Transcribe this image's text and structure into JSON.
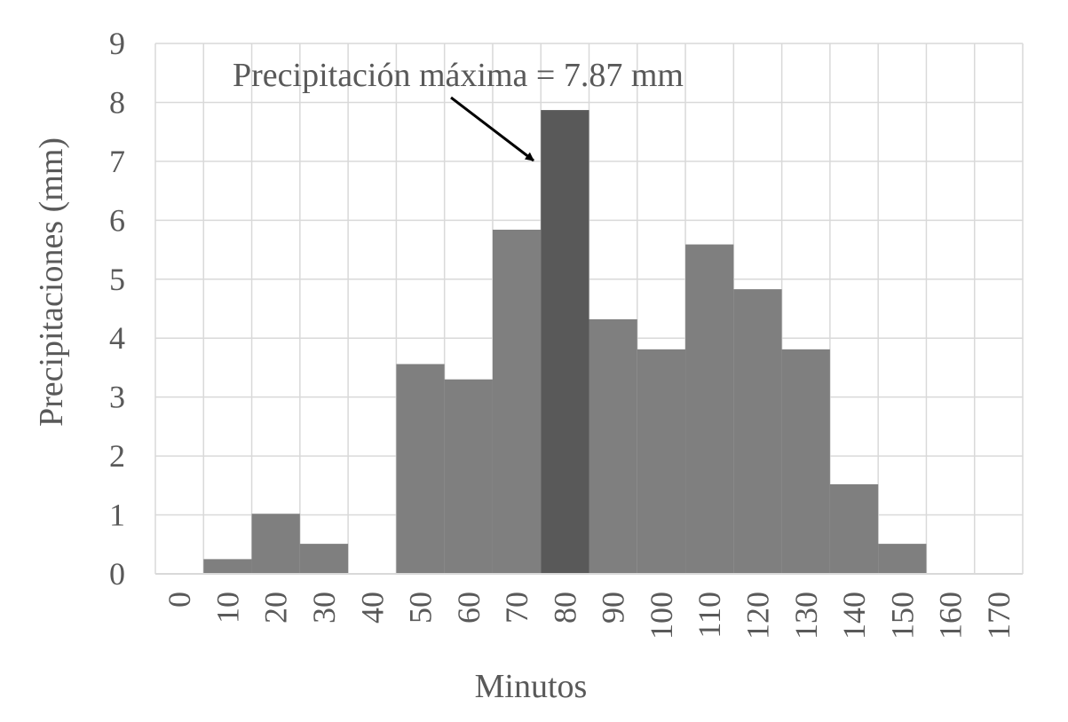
{
  "chart_data": {
    "type": "bar",
    "title": "",
    "xlabel": "Minutos",
    "ylabel": "Precipitaciones (mm)",
    "ylim": [
      0,
      9
    ],
    "yticks": [
      "0",
      "1",
      "2",
      "3",
      "4",
      "5",
      "6",
      "7",
      "8",
      "9"
    ],
    "categories": [
      "0",
      "10",
      "20",
      "30",
      "40",
      "50",
      "60",
      "70",
      "80",
      "90",
      "100",
      "110",
      "120",
      "130",
      "140",
      "150",
      "160",
      "170"
    ],
    "values": [
      0,
      0.25,
      1.02,
      0.51,
      0,
      3.56,
      3.3,
      5.84,
      7.87,
      4.32,
      3.81,
      5.59,
      4.83,
      3.81,
      1.52,
      0.51,
      0,
      0
    ],
    "highlight_index": 8,
    "grid": true,
    "colors": {
      "bar": "#7f7f7f",
      "highlight": "#595959",
      "grid": "#d9d9d9",
      "text": "#595959"
    },
    "annotation": {
      "text": "Precipitación  máxima = 7.87 mm"
    }
  }
}
